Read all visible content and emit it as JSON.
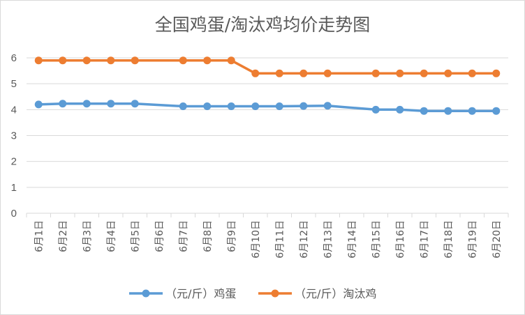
{
  "chart_data": {
    "type": "line",
    "title": "全国鸡蛋/淘汰鸡均价走势图",
    "xlabel": "",
    "ylabel": "",
    "ylim": [
      0,
      6
    ],
    "yticks": [
      "0",
      "1",
      "2",
      "3",
      "4",
      "5",
      "6"
    ],
    "grid": true,
    "legend_position": "bottom",
    "categories": [
      "6月1日",
      "6月2日",
      "6月3日",
      "6月4日",
      "6月5日",
      "6月6日",
      "6月7日",
      "6月8日",
      "6月9日",
      "6月10日",
      "6月11日",
      "6月12日",
      "6月13日",
      "6月14日",
      "6月15日",
      "6月16日",
      "6月17日",
      "6月18日",
      "6月19日",
      "6月20日"
    ],
    "series": [
      {
        "name": "（元/斤）鸡蛋",
        "color": "#5b9bd5",
        "values": [
          4.2,
          4.23,
          4.23,
          4.23,
          4.23,
          null,
          4.13,
          4.13,
          4.13,
          4.13,
          4.13,
          4.14,
          4.15,
          null,
          4.0,
          4.0,
          3.95,
          3.95,
          3.95,
          3.95
        ]
      },
      {
        "name": "（元/斤）淘汰鸡",
        "color": "#ed7d31",
        "values": [
          5.9,
          5.9,
          5.9,
          5.9,
          5.9,
          null,
          5.9,
          5.9,
          5.9,
          5.4,
          5.4,
          5.4,
          5.4,
          null,
          5.4,
          5.4,
          5.4,
          5.4,
          5.4,
          5.4
        ]
      }
    ]
  }
}
